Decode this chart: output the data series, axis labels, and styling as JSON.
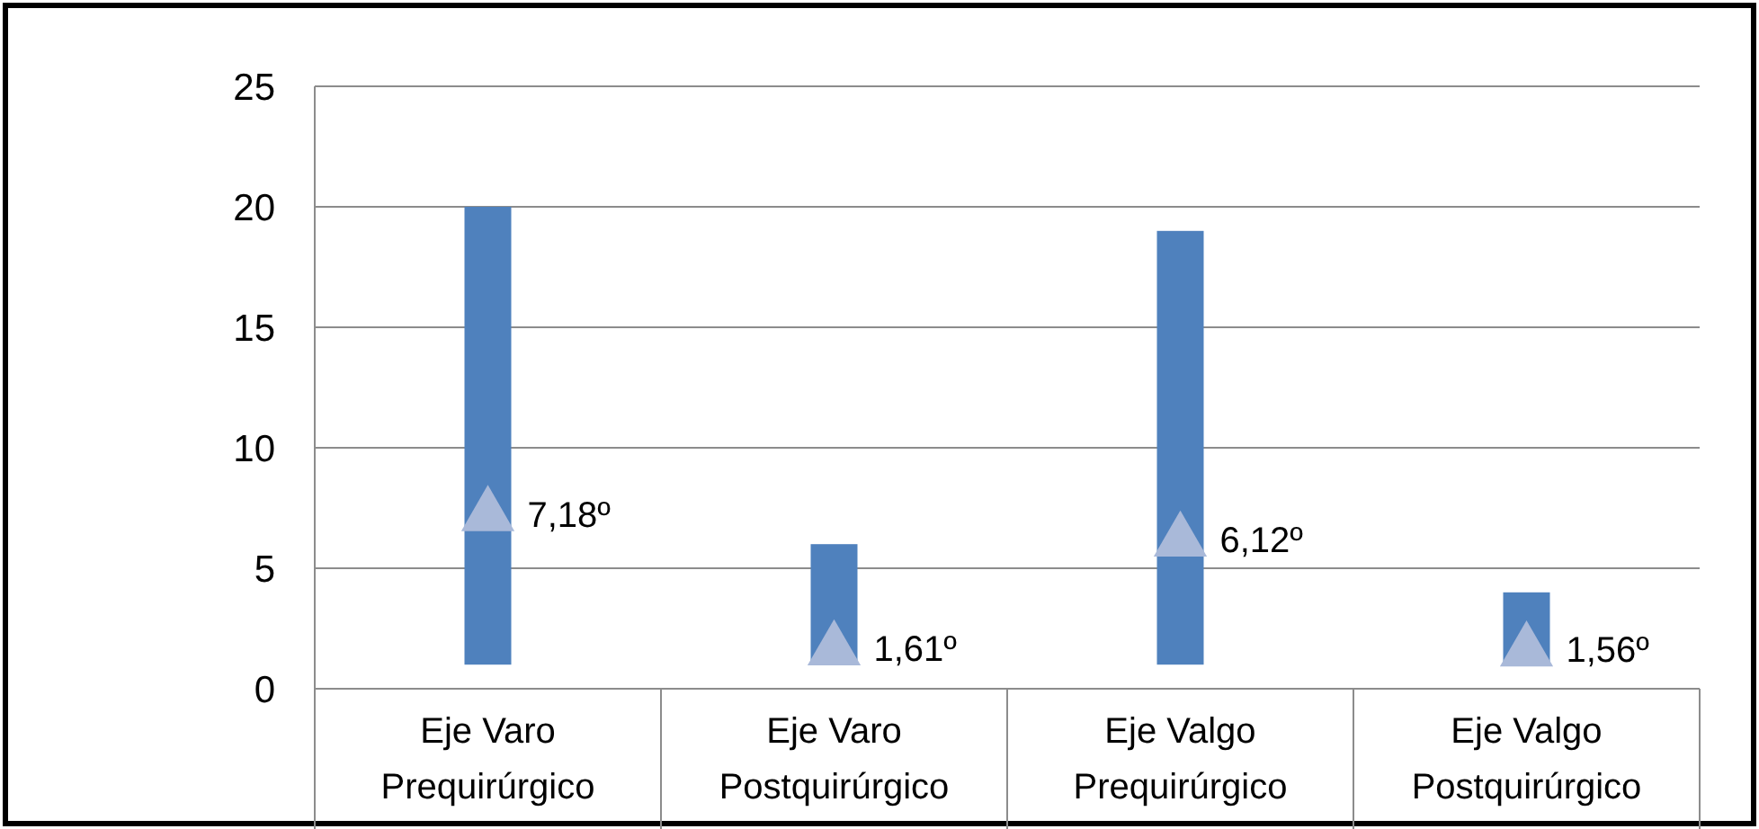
{
  "chart_data": {
    "type": "bar",
    "categories": [
      "Eje Varo Prequirúrgico",
      "Eje Varo Postquirúrgico",
      "Eje Valgo Prequirúrgico",
      "Eje Valgo Postquirúrgico"
    ],
    "series": [
      {
        "color": "#4f81bd",
        "values": [
          19,
          5,
          18,
          3
        ],
        "base": [
          1,
          1,
          1,
          1
        ]
      },
      {
        "type": "scatter",
        "color": "#a9b9d9",
        "marker": "triangle",
        "x": [
          "Eje Varo Prequirúrgico",
          "Eje Varo Postquirúrgico",
          "Eje Valgo Prequirúrgico",
          "Eje Valgo Postquirúrgico"
        ],
        "values": [
          7.18,
          1.61,
          6.12,
          1.56
        ],
        "value_labels": [
          "7,18º",
          "1,61º",
          "6,12º",
          "1,56º"
        ]
      }
    ],
    "ylim": [
      0,
      25
    ],
    "yticks": [
      0,
      5,
      10,
      15,
      20,
      25
    ],
    "grid": "y"
  }
}
